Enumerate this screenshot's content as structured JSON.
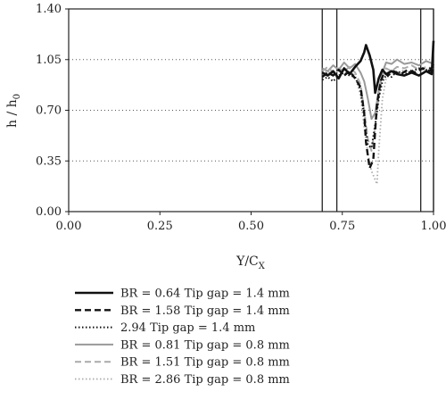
{
  "chart_data": {
    "type": "line",
    "title": "",
    "xlabel": "Y/C",
    "xlabel_sub": "X",
    "ylabel": "h / h",
    "ylabel_sub": "0",
    "xlim": [
      0.0,
      1.0
    ],
    "ylim": [
      0.0,
      1.4
    ],
    "x_ticks": [
      "0.00",
      "0.25",
      "0.50",
      "0.75",
      "1.00"
    ],
    "y_ticks": [
      "0.00",
      "0.35",
      "0.70",
      "1.05",
      "1.40"
    ],
    "horizontal_gridlines": "dotted at each y tick",
    "vertical_reference_lines": [
      0.695,
      0.735,
      0.965,
      1.0
    ],
    "legend_position": "below plot",
    "series": [
      {
        "name": "BR = 0.64 Tip gap = 1.4 mm",
        "color": "#111111",
        "dash": "solid",
        "width": 2.6,
        "x": [
          0.695,
          0.71,
          0.725,
          0.74,
          0.755,
          0.77,
          0.785,
          0.8,
          0.81,
          0.815,
          0.825,
          0.835,
          0.84,
          0.85,
          0.86,
          0.87,
          0.885,
          0.9,
          0.92,
          0.94,
          0.96,
          0.98,
          0.995,
          1.0
        ],
        "y": [
          0.96,
          0.94,
          0.97,
          0.92,
          0.99,
          0.95,
          1.0,
          1.04,
          1.1,
          1.15,
          1.08,
          0.98,
          0.82,
          0.92,
          0.98,
          0.95,
          0.97,
          0.95,
          0.94,
          0.96,
          0.94,
          0.97,
          0.95,
          1.18
        ]
      },
      {
        "name": "BR = 1.58 Tip gap = 1.4 mm",
        "color": "#111111",
        "dash": "7,4",
        "width": 2.4,
        "x": [
          0.695,
          0.71,
          0.725,
          0.74,
          0.755,
          0.77,
          0.785,
          0.8,
          0.81,
          0.815,
          0.825,
          0.835,
          0.84,
          0.845,
          0.855,
          0.865,
          0.875,
          0.89,
          0.91,
          0.93,
          0.95,
          0.97,
          0.99,
          1.0
        ],
        "y": [
          0.93,
          0.96,
          0.94,
          0.98,
          0.94,
          0.97,
          0.92,
          0.86,
          0.68,
          0.48,
          0.3,
          0.36,
          0.56,
          0.74,
          0.9,
          0.96,
          0.94,
          0.97,
          0.95,
          0.98,
          0.96,
          0.99,
          0.97,
          1.02
        ]
      },
      {
        "name": "2.94 Tip gap = 1.4 mm",
        "color": "#111111",
        "dash": "1.5,2.5",
        "width": 2.0,
        "x": [
          0.695,
          0.71,
          0.725,
          0.74,
          0.755,
          0.77,
          0.785,
          0.8,
          0.81,
          0.82,
          0.83,
          0.84,
          0.85,
          0.86,
          0.87,
          0.885,
          0.9,
          0.92,
          0.94,
          0.96,
          0.98,
          1.0
        ],
        "y": [
          0.91,
          0.93,
          0.9,
          0.94,
          0.96,
          0.94,
          0.93,
          0.84,
          0.66,
          0.46,
          0.44,
          0.6,
          0.78,
          0.9,
          0.94,
          0.93,
          0.97,
          0.95,
          0.97,
          0.99,
          0.98,
          1.0
        ]
      },
      {
        "name": "BR = 0.81 Tip gap = 0.8 mm",
        "color": "#999999",
        "dash": "solid",
        "width": 2.0,
        "x": [
          0.695,
          0.71,
          0.725,
          0.74,
          0.755,
          0.77,
          0.785,
          0.8,
          0.81,
          0.82,
          0.83,
          0.84,
          0.85,
          0.86,
          0.87,
          0.885,
          0.9,
          0.92,
          0.94,
          0.96,
          0.98,
          1.0
        ],
        "y": [
          0.99,
          0.97,
          1.01,
          0.98,
          1.03,
          0.99,
          1.02,
          0.96,
          0.9,
          0.78,
          0.64,
          0.68,
          0.84,
          0.96,
          1.03,
          1.02,
          1.05,
          1.02,
          1.03,
          1.01,
          1.04,
          1.02
        ]
      },
      {
        "name": "BR = 1.51 Tip gap = 0.8 mm",
        "color": "#aaaaaa",
        "dash": "7,4",
        "width": 2.0,
        "x": [
          0.695,
          0.71,
          0.725,
          0.74,
          0.755,
          0.77,
          0.785,
          0.8,
          0.81,
          0.82,
          0.83,
          0.84,
          0.85,
          0.86,
          0.87,
          0.885,
          0.9,
          0.92,
          0.94,
          0.96,
          0.98,
          1.0
        ],
        "y": [
          0.97,
          1.0,
          0.96,
          0.99,
          0.97,
          1.0,
          0.96,
          0.88,
          0.7,
          0.5,
          0.42,
          0.58,
          0.8,
          0.94,
          0.99,
          0.97,
          1.0,
          0.99,
          1.01,
          0.98,
          1.0,
          0.99
        ]
      },
      {
        "name": "BR = 2.86 Tip gap = 0.8 mm",
        "color": "#aaaaaa",
        "dash": "1.5,2.5",
        "width": 1.8,
        "x": [
          0.695,
          0.71,
          0.725,
          0.74,
          0.755,
          0.77,
          0.785,
          0.8,
          0.81,
          0.82,
          0.83,
          0.84,
          0.845,
          0.85,
          0.86,
          0.87,
          0.885,
          0.9,
          0.92,
          0.94,
          0.96,
          0.98,
          1.0
        ],
        "y": [
          0.95,
          0.97,
          0.94,
          0.98,
          0.95,
          0.97,
          0.94,
          0.8,
          0.58,
          0.4,
          0.28,
          0.22,
          0.19,
          0.42,
          0.78,
          0.92,
          0.96,
          0.95,
          0.98,
          0.96,
          0.99,
          0.97,
          1.0
        ]
      }
    ]
  }
}
